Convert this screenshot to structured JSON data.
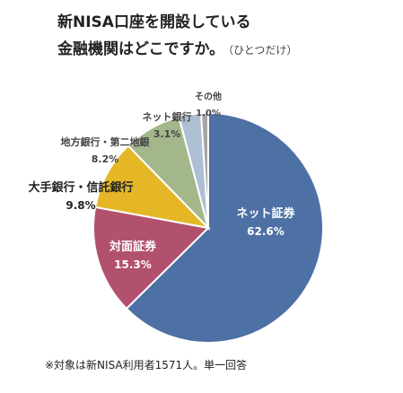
{
  "title_line1": "新NISA口座を開設している",
  "title_line2": "金融機関はどこですか。",
  "title_sub": "（ひとつだけ）",
  "note": "※対象は新NISA利用者1571人。単一回答",
  "chart_data": {
    "type": "pie",
    "start": "12 o'clock",
    "direction": "clockwise",
    "slices": [
      {
        "label": "ネット証券",
        "value": 62.6,
        "value_label": "62.6%",
        "color": "#4d70a5"
      },
      {
        "label": "対面証券",
        "value": 15.3,
        "value_label": "15.3%",
        "color": "#b2516e"
      },
      {
        "label": "大手銀行・信託銀行",
        "value": 9.8,
        "value_label": "9.8%",
        "color": "#e5b727"
      },
      {
        "label": "地方銀行・第二地銀",
        "value": 8.2,
        "value_label": "8.2%",
        "color": "#a4b78b"
      },
      {
        "label": "ネット銀行",
        "value": 3.1,
        "value_label": "3.1%",
        "color": "#aebfd3"
      },
      {
        "label": "その他",
        "value": 1.0,
        "value_label": "1.0%",
        "color": "#a6a6a6"
      }
    ]
  }
}
